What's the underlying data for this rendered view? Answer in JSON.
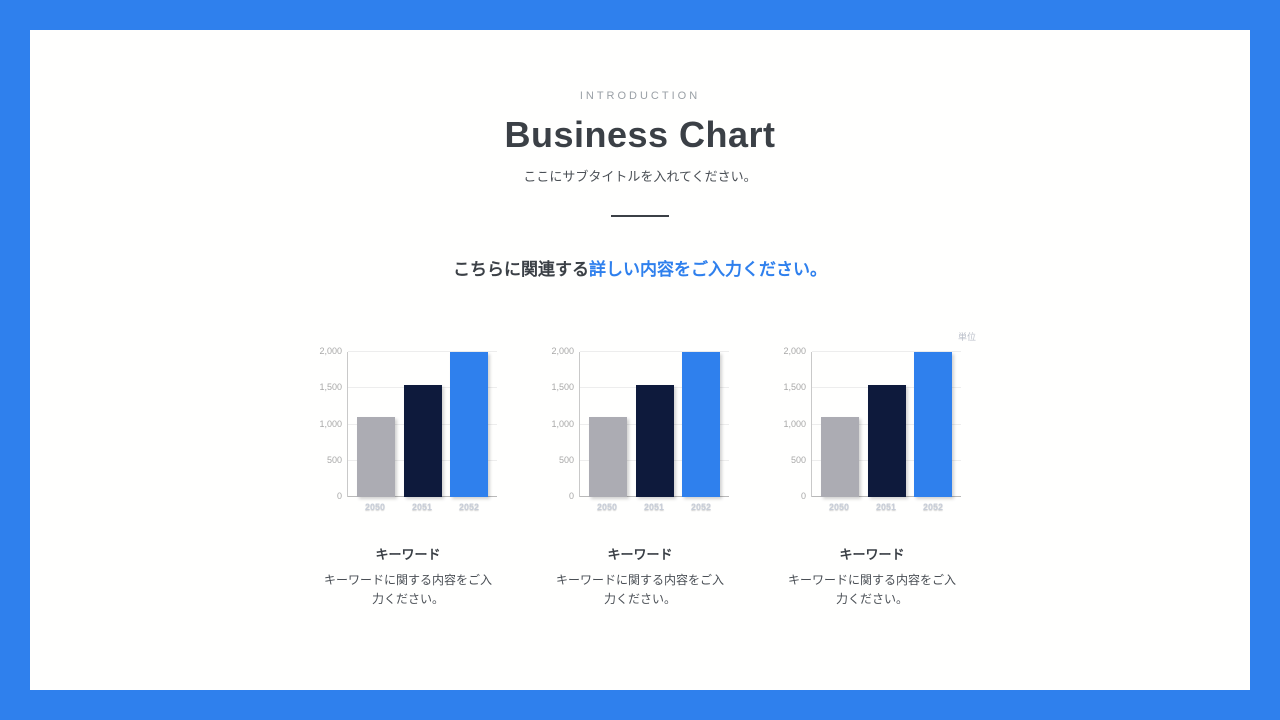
{
  "slide": {
    "eyebrow": "INTRODUCTION",
    "title": "Business Chart",
    "subtitle": "ここにサブタイトルを入れてください。",
    "lead": {
      "dark": "こちらに関連する",
      "blue": "詳しい内容をご入力ください。"
    },
    "unit_label": "単位"
  },
  "colors": {
    "frame_blue": "#2F80ED",
    "accent_blue": "#2F80ED",
    "navy_bar": "#0E1A3C",
    "gray_bar": "#ACACB3",
    "title_text": "#3b4046"
  },
  "columns": [
    {
      "keyword": "キーワード",
      "description": "キーワードに関する内容をご入力ください。"
    },
    {
      "keyword": "キーワード",
      "description": "キーワードに関する内容をご入力ください。"
    },
    {
      "keyword": "キーワード",
      "description": "キーワードに関する内容をご入力ください。"
    }
  ],
  "chart_data": [
    {
      "type": "bar",
      "title": "",
      "xlabel": "",
      "ylabel": "",
      "categories": [
        "2050",
        "2051",
        "2052"
      ],
      "values": [
        1100,
        1550,
        2000
      ],
      "bar_colors": [
        "#ACACB3",
        "#0E1A3C",
        "#2F80ED"
      ],
      "ylim": [
        0,
        2000
      ],
      "yticks": [
        0,
        500,
        1000,
        1500,
        2000
      ],
      "ytick_labels": [
        "0",
        "500",
        "1,000",
        "1,500",
        "2,000"
      ],
      "grid": true,
      "legend": "none"
    },
    {
      "type": "bar",
      "title": "",
      "xlabel": "",
      "ylabel": "",
      "categories": [
        "2050",
        "2051",
        "2052"
      ],
      "values": [
        1100,
        1550,
        2000
      ],
      "bar_colors": [
        "#ACACB3",
        "#0E1A3C",
        "#2F80ED"
      ],
      "ylim": [
        0,
        2000
      ],
      "yticks": [
        0,
        500,
        1000,
        1500,
        2000
      ],
      "ytick_labels": [
        "0",
        "500",
        "1,000",
        "1,500",
        "2,000"
      ],
      "grid": true,
      "legend": "none"
    },
    {
      "type": "bar",
      "title": "",
      "xlabel": "",
      "ylabel": "",
      "categories": [
        "2050",
        "2051",
        "2052"
      ],
      "values": [
        1100,
        1550,
        2000
      ],
      "bar_colors": [
        "#ACACB3",
        "#0E1A3C",
        "#2F80ED"
      ],
      "ylim": [
        0,
        2000
      ],
      "yticks": [
        0,
        500,
        1000,
        1500,
        2000
      ],
      "ytick_labels": [
        "0",
        "500",
        "1,000",
        "1,500",
        "2,000"
      ],
      "grid": true,
      "legend": "none"
    }
  ]
}
